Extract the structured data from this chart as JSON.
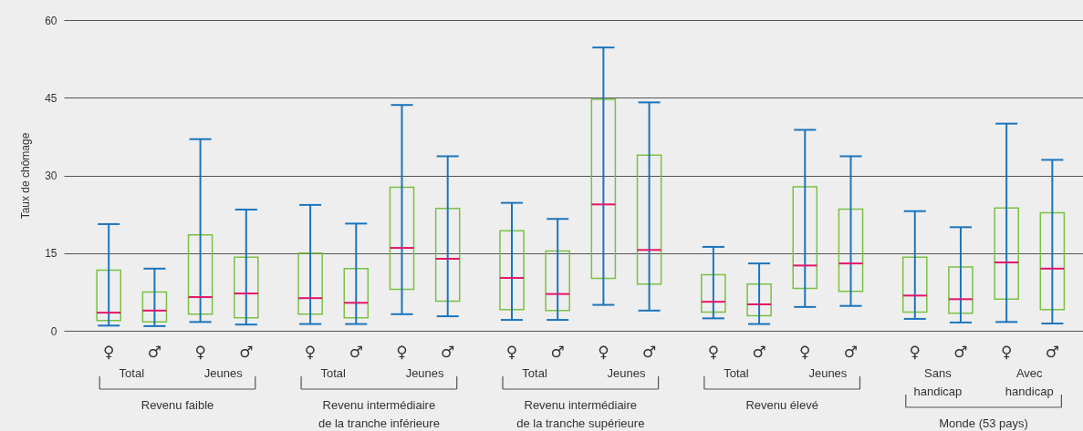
{
  "chart_data": {
    "type": "box",
    "ylabel": "Taux de chômage",
    "categories": [
      "♀",
      "♂",
      "♀",
      "♂",
      "♀",
      "♂",
      "♀",
      "♂",
      "♀",
      "♂",
      "♀",
      "♂",
      "♀",
      "♂",
      "♀",
      "♂",
      "♀",
      "♂",
      "♀",
      "♂"
    ],
    "series": [
      {
        "color": "#7ac143",
        "boxes": [
          {
            "low": 1.0,
            "q1": 2.0,
            "median": 3.5,
            "q3": 11.7,
            "high": 20.6
          },
          {
            "low": 0.9,
            "q1": 1.7,
            "median": 3.9,
            "q3": 7.5,
            "high": 12.0
          },
          {
            "low": 1.7,
            "q1": 3.2,
            "median": 6.5,
            "q3": 18.5,
            "high": 37.0
          },
          {
            "low": 1.2,
            "q1": 2.5,
            "median": 7.2,
            "q3": 14.2,
            "high": 23.4
          },
          {
            "low": 1.3,
            "q1": 3.2,
            "median": 6.3,
            "q3": 15.0,
            "high": 24.3
          },
          {
            "low": 1.3,
            "q1": 2.5,
            "median": 5.4,
            "q3": 12.0,
            "high": 20.7
          },
          {
            "low": 3.2,
            "q1": 8.0,
            "median": 16.0,
            "q3": 27.7,
            "high": 43.6
          },
          {
            "low": 2.8,
            "q1": 5.7,
            "median": 13.9,
            "q3": 23.6,
            "high": 33.7
          },
          {
            "low": 2.1,
            "q1": 4.1,
            "median": 10.2,
            "q3": 19.3,
            "high": 24.7
          },
          {
            "low": 2.1,
            "q1": 3.9,
            "median": 7.1,
            "q3": 15.4,
            "high": 21.6
          },
          {
            "low": 5.0,
            "q1": 10.1,
            "median": 24.4,
            "q3": 44.7,
            "high": 54.7
          },
          {
            "low": 3.9,
            "q1": 9.0,
            "median": 15.6,
            "q3": 33.9,
            "high": 44.1
          },
          {
            "low": 2.4,
            "q1": 3.6,
            "median": 5.6,
            "q3": 10.8,
            "high": 16.2
          },
          {
            "low": 1.3,
            "q1": 2.9,
            "median": 5.1,
            "q3": 9.0,
            "high": 13.0
          },
          {
            "low": 4.6,
            "q1": 8.2,
            "median": 12.6,
            "q3": 27.8,
            "high": 38.8
          },
          {
            "low": 4.8,
            "q1": 7.6,
            "median": 13.0,
            "q3": 23.5,
            "high": 33.7
          },
          {
            "low": 2.3,
            "q1": 3.6,
            "median": 6.8,
            "q3": 14.2,
            "high": 23.1
          },
          {
            "low": 1.6,
            "q1": 3.4,
            "median": 6.1,
            "q3": 12.3,
            "high": 20.0
          },
          {
            "low": 1.7,
            "q1": 6.1,
            "median": 13.2,
            "q3": 23.7,
            "high": 40.0
          },
          {
            "low": 1.4,
            "q1": 4.1,
            "median": 12.0,
            "q3": 22.8,
            "high": 33.0
          }
        ]
      }
    ],
    "colors": [
      "#e2156b",
      "#e2156b",
      "#e2156b",
      "#e2156b",
      "#e2156b",
      "#e2156b",
      "#e2156b",
      "#e2156b",
      "#e2156b",
      "#e2156b",
      "#e2156b",
      "#e2156b",
      "#e2156b",
      "#e2156b",
      "#e2156b",
      "#e2156b",
      "#e2156b",
      "#e2156b",
      "#e2156b",
      "#e2156b"
    ],
    "color": "#1b75bc",
    "ylim": [
      0,
      60
    ],
    "yticks": [
      0,
      15,
      30,
      45,
      60
    ],
    "grid": "y",
    "annotations": [
      "Total",
      "Jeunes",
      "Total",
      "Jeunes",
      "Total",
      "Jeunes",
      "Total",
      "Jeunes",
      "Sans\nhandicap",
      "Avec\nhandicap",
      "Revenu faible",
      "Revenu intermédiaire\nde la tranche inférieure",
      "Revenu intermédiaire\nde la tranche supérieure",
      "Revenu élevé",
      "Monde (53 pays)"
    ]
  }
}
